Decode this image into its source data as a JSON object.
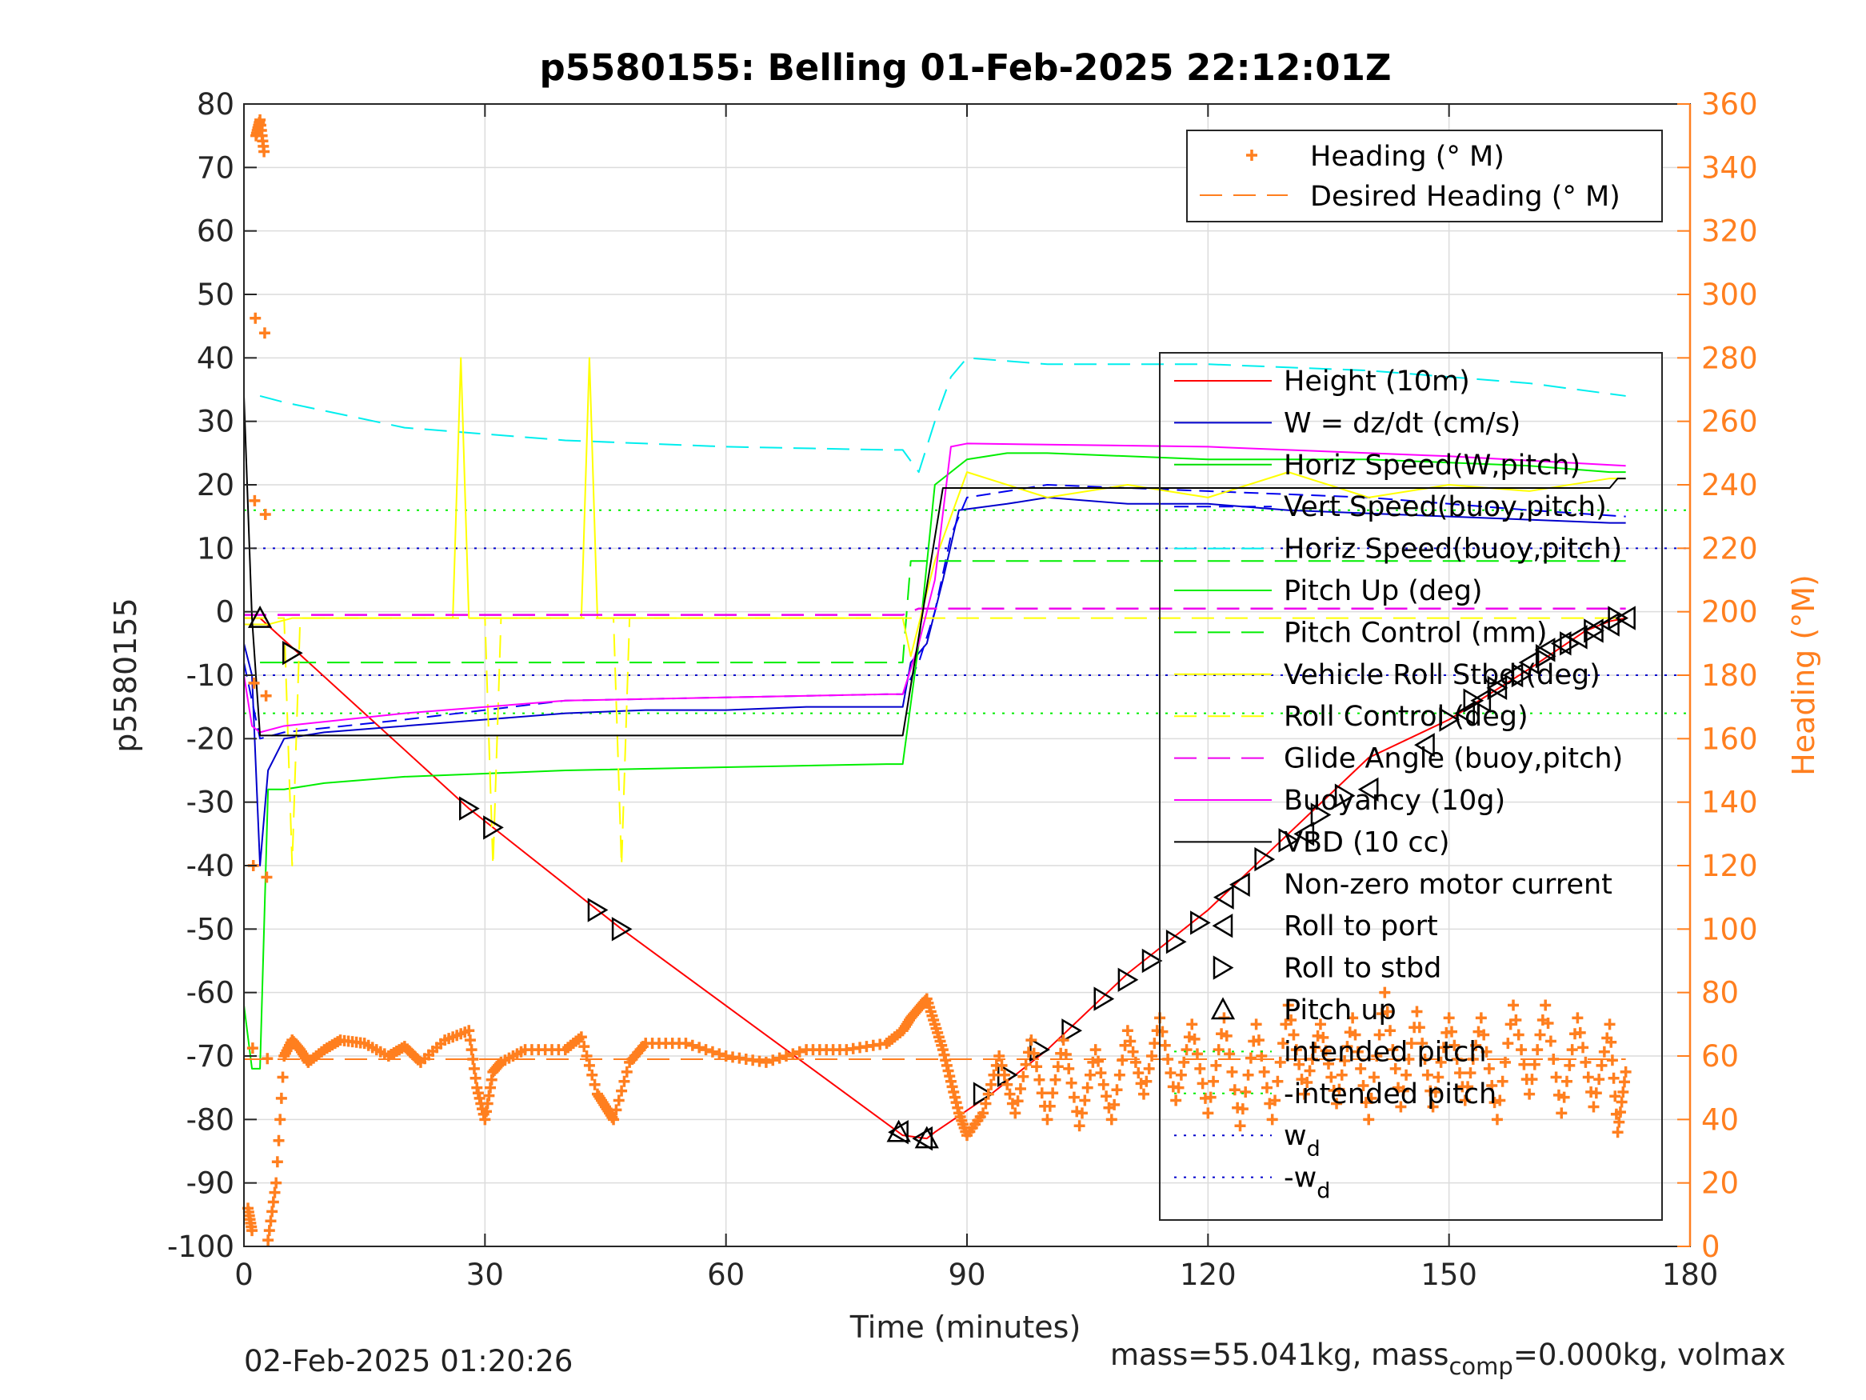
{
  "chart_data": {
    "type": "line",
    "title": "p5580155: Belling 01-Feb-2025 22:12:01Z",
    "xlabel": "Time (minutes)",
    "ylabel_left": "p5580155",
    "ylabel_right": "Heading (°M)",
    "xlim": [
      0,
      180
    ],
    "ylim_left": [
      -100,
      80
    ],
    "ylim_right": [
      0,
      360
    ],
    "x_ticks": [
      "0",
      "30",
      "60",
      "90",
      "120",
      "150",
      "180"
    ],
    "y_left_ticks": [
      "80",
      "70",
      "60",
      "50",
      "40",
      "30",
      "20",
      "10",
      "0",
      "-10",
      "-20",
      "-30",
      "-40",
      "-50",
      "-60",
      "-70",
      "-80",
      "-90",
      "-100"
    ],
    "y_right_ticks": [
      "360",
      "340",
      "320",
      "300",
      "280",
      "260",
      "240",
      "220",
      "200",
      "180",
      "160",
      "140",
      "120",
      "100",
      "80",
      "60",
      "40",
      "20",
      "0"
    ],
    "grid": true,
    "colors": {
      "height": "#ff0000",
      "w": "#0000cc",
      "horiz_w": "#00dd00",
      "vert_buoy": "#0000ee",
      "horiz_buoy": "#00eeee",
      "pitch": "#00ee00",
      "roll": "#ffff00",
      "glide": "#ee00ee",
      "buoy": "#ff00ff",
      "vbd": "#000000",
      "heading": "#ff7f1f",
      "right_axis": "#ff7f1f"
    },
    "series": [
      {
        "name": "Height (10m)",
        "x": [
          0,
          2,
          28,
          31,
          44,
          47,
          82,
          85,
          86,
          93,
          100,
          110,
          120,
          130,
          140,
          150,
          160,
          167,
          170,
          172
        ],
        "y": [
          -1,
          -1,
          -31,
          -34,
          -47,
          -50,
          -82.5,
          -83,
          -82,
          -76,
          -69,
          -57,
          -47,
          -35,
          -23,
          -17,
          -9,
          -3,
          -1.5,
          -1
        ]
      },
      {
        "name": "W = dz/dt (cm/s)",
        "x": [
          0,
          1,
          2,
          3,
          5,
          10,
          20,
          30,
          40,
          50,
          60,
          70,
          80,
          82,
          83,
          85,
          87,
          89,
          95,
          100,
          110,
          120,
          130,
          140,
          150,
          160,
          170,
          172
        ],
        "y": [
          -5,
          -10,
          -40,
          -25,
          -20,
          -19,
          -18,
          -17,
          -16,
          -15.5,
          -15.5,
          -15,
          -15,
          -15,
          -8,
          -5,
          5,
          16,
          17,
          18,
          17,
          17,
          16,
          15.5,
          15,
          14.5,
          14,
          14
        ]
      },
      {
        "name": "Horiz Speed(W,pitch)",
        "x": [],
        "y": []
      },
      {
        "name": "Vert Speed(buoy,pitch)",
        "x": [
          0,
          2,
          5,
          20,
          40,
          60,
          80,
          82,
          84,
          86,
          88,
          90,
          100,
          120,
          140,
          160,
          172
        ],
        "y": [
          -8,
          -20,
          -19,
          -17,
          -14,
          -13.5,
          -13,
          -13,
          -8,
          0,
          12,
          18,
          20,
          19,
          18,
          16,
          15
        ]
      },
      {
        "name": "Horiz Speed(buoy,pitch)",
        "x": [
          2,
          5,
          20,
          40,
          60,
          80,
          82,
          84,
          86,
          88,
          90,
          100,
          120,
          140,
          160,
          172
        ],
        "y": [
          34,
          33,
          29,
          27,
          26,
          25.5,
          25.5,
          22,
          30,
          37,
          40,
          39,
          39,
          38,
          36,
          34
        ]
      },
      {
        "name": "Pitch Up (deg)",
        "x": [
          0,
          1,
          2,
          3,
          5,
          10,
          20,
          30,
          40,
          60,
          80,
          82,
          84,
          86,
          88,
          90,
          95,
          100,
          120,
          140,
          160,
          170,
          172
        ],
        "y": [
          -62,
          -72,
          -72,
          -28,
          -28,
          -27,
          -26,
          -25.5,
          -25,
          -24.5,
          -24,
          -24,
          -5,
          20,
          22,
          24,
          25,
          25,
          24,
          24,
          23,
          22,
          22
        ]
      },
      {
        "name": "Pitch Control (mm)",
        "x": [
          2,
          82,
          83,
          172
        ],
        "y": [
          -8,
          -8,
          8,
          8
        ]
      },
      {
        "name": "Vehicle Roll Stbd (deg)",
        "x": [
          0,
          3,
          6,
          26,
          27,
          28,
          29,
          42,
          43,
          44,
          45,
          82,
          83,
          86,
          90,
          100,
          110,
          120,
          130,
          140,
          150,
          160,
          170,
          172
        ],
        "y": [
          -2,
          -2,
          -1,
          -1,
          40,
          -1,
          -1,
          -1,
          40,
          -1,
          -1,
          -1,
          -7,
          8,
          22,
          18,
          20,
          18,
          22,
          18,
          20,
          19,
          21,
          21
        ]
      },
      {
        "name": "Roll Control (deg)",
        "x": [
          0,
          5,
          6,
          7,
          28,
          30,
          31,
          32,
          46,
          47,
          48,
          172
        ],
        "y": [
          -1,
          -1,
          -40,
          -1,
          -1,
          -1,
          -40,
          -1,
          -1,
          -40,
          -1,
          -1
        ]
      },
      {
        "name": "Glide Angle (buoy,pitch)",
        "x": [
          0,
          82,
          84,
          172
        ],
        "y": [
          -0.5,
          -0.5,
          0.5,
          0.5
        ]
      },
      {
        "name": "Buoyancy (10g)",
        "x": [
          0,
          1,
          2,
          5,
          20,
          40,
          60,
          80,
          82,
          84,
          86,
          88,
          90,
          120,
          150,
          172
        ],
        "y": [
          -10,
          -18,
          -19,
          -18,
          -16,
          -14,
          -13.5,
          -13,
          -13,
          -5,
          5,
          26,
          26.5,
          26,
          24.5,
          23
        ]
      },
      {
        "name": "VBD (10 cc)",
        "x": [
          0,
          1,
          2,
          82,
          87,
          88,
          170,
          171,
          172
        ],
        "y": [
          34,
          -1,
          -19.5,
          -19.5,
          19.5,
          19.5,
          19.5,
          21,
          21
        ]
      },
      {
        "name": "Non-zero motor current",
        "x": [],
        "y": []
      },
      {
        "name": "Roll to port",
        "x": [
          81.5,
          84.5,
          122,
          124,
          132,
          140,
          147,
          152,
          154,
          156,
          158,
          160,
          162,
          164,
          166,
          168,
          170,
          172
        ],
        "y": [
          -82,
          -83,
          -45,
          -43,
          -35,
          -28,
          -21,
          -16,
          -14,
          -12,
          -10,
          -8,
          -6,
          -5,
          -4,
          -3,
          -2,
          -1
        ]
      },
      {
        "name": "Roll to stbd",
        "x": [
          6,
          28,
          31,
          44,
          47,
          92,
          95,
          99,
          103,
          107,
          110,
          113,
          116,
          119,
          127,
          130,
          134,
          137,
          150,
          153,
          156,
          159,
          162,
          165,
          168,
          171
        ],
        "y": [
          -6.5,
          -31,
          -34,
          -47,
          -50,
          -76,
          -73,
          -69,
          -66,
          -61,
          -58,
          -55,
          -52,
          -49,
          -39,
          -36,
          -32,
          -29,
          -17,
          -14,
          -12,
          -10,
          -7,
          -5,
          -3,
          -1
        ]
      },
      {
        "name": "Pitch up",
        "x": [
          2,
          81.5,
          85
        ],
        "y": [
          -1,
          -82,
          -83
        ]
      },
      {
        "name": "intended pitch",
        "y_const": 16
      },
      {
        "name": "-intended pitch",
        "y_const": -16
      },
      {
        "name": "w_d",
        "y_const": 10
      },
      {
        "name": "-w_d",
        "y_const": -10
      },
      {
        "name": "Heading (° M)",
        "axis": "right",
        "x": [
          0.5,
          1,
          1.5,
          2,
          2.5,
          3,
          4,
          5,
          6,
          7,
          8,
          10,
          12,
          15,
          18,
          20,
          22,
          25,
          28,
          29,
          30,
          31,
          32,
          35,
          40,
          42,
          44,
          45,
          46,
          48,
          50,
          55,
          60,
          65,
          70,
          75,
          80,
          82,
          83,
          84,
          85,
          86,
          87,
          88,
          89,
          90,
          92,
          94,
          96,
          98,
          100,
          102,
          104,
          106,
          108,
          110,
          112,
          114,
          116,
          118,
          120,
          122,
          124,
          126,
          128,
          130,
          132,
          134,
          136,
          138,
          140,
          142,
          144,
          146,
          148,
          150,
          152,
          154,
          156,
          158,
          160,
          162,
          164,
          166,
          168,
          170,
          171,
          172
        ],
        "y": [
          12,
          5,
          350,
          355,
          345,
          2,
          20,
          60,
          65,
          62,
          58,
          62,
          65,
          64,
          60,
          63,
          58,
          65,
          68,
          50,
          40,
          55,
          58,
          62,
          62,
          66,
          48,
          44,
          40,
          58,
          64,
          64,
          60,
          58,
          62,
          62,
          64,
          68,
          72,
          75,
          78,
          70,
          62,
          52,
          42,
          35,
          42,
          60,
          42,
          65,
          40,
          65,
          38,
          62,
          40,
          68,
          48,
          72,
          46,
          70,
          42,
          72,
          38,
          70,
          40,
          76,
          48,
          70,
          45,
          72,
          40,
          80,
          44,
          74,
          44,
          72,
          46,
          72,
          40,
          76,
          48,
          76,
          42,
          72,
          44,
          70,
          36,
          55
        ]
      },
      {
        "name": "Desired Heading (° M)",
        "axis": "right",
        "x": [
          0,
          172
        ],
        "y": [
          59,
          59
        ]
      }
    ],
    "legend_top": [
      "Heading (° M)",
      "Desired Heading (° M)"
    ],
    "legend_main": [
      "Height (10m)",
      "W = dz/dt (cm/s)",
      "Horiz Speed(W,pitch)",
      "Vert Speed(buoy,pitch)",
      "Horiz Speed(buoy,pitch)",
      "Pitch Up (deg)",
      "Pitch Control (mm)",
      "Vehicle Roll Stbd (deg)",
      "Roll Control (deg)",
      "Glide Angle (buoy,pitch)",
      "Buoyancy (10g)",
      "VBD (10 cc)",
      "Non-zero motor current",
      "Roll to port",
      "Roll to stbd",
      "Pitch up",
      "intended pitch",
      "-intended pitch",
      "w",
      "-w"
    ],
    "legend_placement": "right"
  },
  "footer": {
    "timestamp": "02-Feb-2025 01:20:26",
    "mass_prefix": "mass=55.041kg, mass",
    "mass_sub": "comp",
    "mass_suffix": "=0.000kg, volmax"
  }
}
